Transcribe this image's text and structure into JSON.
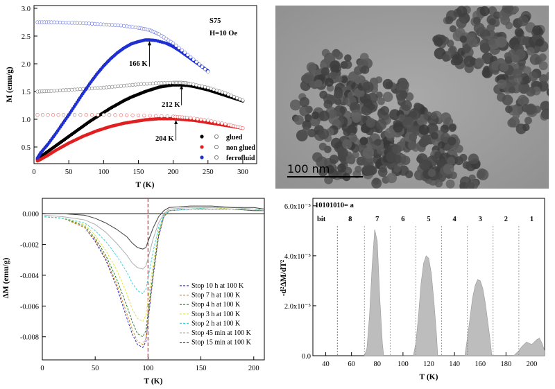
{
  "panel_a": {
    "sample": "S75",
    "field": "H=10 Oe",
    "xlabel": "T (K)",
    "ylabel": "M (emu/g)",
    "annotations": [
      "166 K",
      "212 K",
      "204 K"
    ],
    "legend": [
      "glued",
      "non glued",
      "ferrofluid"
    ],
    "colors": {
      "glued": "#000000",
      "non_glued": "#e02020",
      "ferrofluid": "#1f2fd0"
    }
  },
  "panel_b": {
    "scale_label": "100 nm"
  },
  "panel_c": {
    "xlabel": "T (K)",
    "ylabel": "ΔM (emu/g)",
    "legend": [
      "Stop 10 h at 100 K",
      "Stop 7 h at 100 K",
      "Stop 4 h at 100 K",
      "Stop 3 h at 100 K",
      "Stop 2 h at 100 K",
      "Stop 45 min at 100 K",
      "Stop 15 min at 100 K"
    ],
    "colors": [
      "#2a2acc",
      "#e0881a",
      "#2a7a2a",
      "#e0e04a",
      "#40d0e0",
      "#b0b0b0",
      "#404040"
    ]
  },
  "panel_d": {
    "header": "10101010= a",
    "bit_label": "bit",
    "bits": [
      "8",
      "7",
      "6",
      "5",
      "4",
      "3",
      "2",
      "1"
    ],
    "xlabel": "T (K)",
    "ylabel": "-d²ΔM/dT²"
  },
  "chart_data": [
    {
      "type": "scatter",
      "xlabel": "T (K)",
      "ylabel": "M (emu/g)",
      "xlim": [
        0,
        320
      ],
      "ylim": [
        0.2,
        3.05
      ],
      "xticks": [
        0,
        50,
        100,
        150,
        200,
        250,
        300
      ],
      "yticks": [
        0.5,
        1.0,
        1.5,
        2.0,
        2.5,
        3.0
      ],
      "series": [
        {
          "name": "glued",
          "mode": "ZFC",
          "x": [
            5,
            10,
            20,
            30,
            40,
            50,
            60,
            70,
            80,
            90,
            100,
            110,
            120,
            130,
            140,
            150,
            160,
            170,
            180,
            190,
            200,
            205,
            210,
            220,
            230,
            240,
            250,
            260,
            270,
            280,
            290,
            300
          ],
          "y": [
            0.28,
            0.33,
            0.42,
            0.51,
            0.6,
            0.69,
            0.78,
            0.87,
            0.96,
            1.04,
            1.12,
            1.2,
            1.27,
            1.34,
            1.4,
            1.45,
            1.5,
            1.54,
            1.58,
            1.6,
            1.62,
            1.62,
            1.62,
            1.61,
            1.59,
            1.56,
            1.53,
            1.49,
            1.45,
            1.41,
            1.37,
            1.33
          ]
        },
        {
          "name": "glued",
          "mode": "FC",
          "x": [
            5,
            25,
            50,
            75,
            100,
            125,
            150,
            175,
            200,
            212,
            225,
            250,
            275,
            300
          ],
          "y": [
            1.5,
            1.51,
            1.53,
            1.55,
            1.57,
            1.6,
            1.63,
            1.65,
            1.66,
            1.66,
            1.64,
            1.57,
            1.47,
            1.34
          ]
        },
        {
          "name": "non glued",
          "mode": "ZFC",
          "x": [
            5,
            10,
            20,
            30,
            40,
            50,
            60,
            70,
            80,
            90,
            100,
            110,
            120,
            130,
            140,
            150,
            160,
            170,
            180,
            190,
            200,
            210,
            220,
            230,
            240,
            250,
            260,
            270,
            280,
            290,
            300
          ],
          "y": [
            0.25,
            0.28,
            0.35,
            0.43,
            0.5,
            0.57,
            0.63,
            0.69,
            0.74,
            0.79,
            0.83,
            0.87,
            0.9,
            0.93,
            0.95,
            0.97,
            0.99,
            1.0,
            1.01,
            1.01,
            1.01,
            1.0,
            0.99,
            0.98,
            0.96,
            0.94,
            0.92,
            0.9,
            0.88,
            0.86,
            0.84
          ]
        },
        {
          "name": "non glued",
          "mode": "FC",
          "x": [
            5,
            50,
            100,
            150,
            200,
            220,
            250,
            280,
            300
          ],
          "y": [
            1.08,
            1.08,
            1.08,
            1.07,
            1.05,
            1.03,
            0.98,
            0.9,
            0.84
          ]
        },
        {
          "name": "ferrofluid",
          "mode": "ZFC",
          "x": [
            5,
            10,
            20,
            30,
            40,
            50,
            60,
            70,
            80,
            90,
            100,
            110,
            120,
            130,
            140,
            150,
            160,
            166,
            175,
            190,
            200,
            210,
            220,
            230,
            240,
            250
          ],
          "y": [
            0.3,
            0.4,
            0.55,
            0.72,
            0.9,
            1.08,
            1.27,
            1.46,
            1.64,
            1.81,
            1.96,
            2.09,
            2.2,
            2.29,
            2.36,
            2.4,
            2.43,
            2.43,
            2.42,
            2.37,
            2.31,
            2.23,
            2.14,
            2.05,
            1.96,
            1.87
          ]
        },
        {
          "name": "ferrofluid",
          "mode": "FC",
          "x": [
            5,
            25,
            50,
            75,
            100,
            125,
            150,
            166,
            180,
            200,
            225,
            250
          ],
          "y": [
            2.75,
            2.75,
            2.74,
            2.73,
            2.71,
            2.69,
            2.65,
            2.61,
            2.53,
            2.37,
            2.12,
            1.86
          ]
        }
      ]
    },
    {
      "type": "line",
      "xlabel": "T (K)",
      "ylabel": "ΔM (emu/g)",
      "xlim": [
        0,
        210
      ],
      "ylim": [
        -0.0095,
        0.001
      ],
      "xticks": [
        0,
        50,
        100,
        150,
        200
      ],
      "yticks": [
        0.0,
        -0.002,
        -0.004,
        -0.006,
        -0.008
      ],
      "vline": 100,
      "series": [
        {
          "name": "Stop 10 h at 100 K",
          "x": [
            2,
            20,
            40,
            50,
            60,
            70,
            80,
            85,
            90,
            95,
            98,
            100,
            105,
            110,
            115,
            120,
            140,
            160,
            180,
            200,
            210
          ],
          "y": [
            -0.0002,
            -0.0003,
            -0.0009,
            -0.0018,
            -0.003,
            -0.0047,
            -0.0068,
            -0.0078,
            -0.0085,
            -0.0087,
            -0.0083,
            -0.007,
            -0.004,
            -0.0015,
            -0.0002,
            0.0002,
            0.0003,
            0.0003,
            0.0003,
            0.0002,
            0.0002
          ]
        },
        {
          "name": "Stop 7 h at 100 K",
          "x": [
            2,
            20,
            40,
            50,
            60,
            70,
            80,
            85,
            90,
            95,
            98,
            100,
            105,
            110,
            115,
            120,
            140,
            160,
            180,
            200,
            210
          ],
          "y": [
            -0.0002,
            -0.0003,
            -0.0009,
            -0.0017,
            -0.0029,
            -0.0045,
            -0.0065,
            -0.0075,
            -0.0083,
            -0.0085,
            -0.0081,
            -0.0068,
            -0.0039,
            -0.0014,
            -0.0002,
            0.0002,
            0.0003,
            0.0003,
            0.0003,
            0.0002,
            0.0002
          ]
        },
        {
          "name": "Stop 4 h at 100 K",
          "x": [
            2,
            20,
            40,
            50,
            60,
            70,
            80,
            85,
            90,
            95,
            98,
            100,
            105,
            110,
            115,
            120,
            140,
            160,
            180,
            200,
            210
          ],
          "y": [
            -0.0002,
            -0.0003,
            -0.0008,
            -0.0016,
            -0.0027,
            -0.0042,
            -0.006,
            -0.007,
            -0.0078,
            -0.008,
            -0.0076,
            -0.0064,
            -0.0037,
            -0.0013,
            -0.0001,
            0.0002,
            0.0003,
            0.0004,
            0.0003,
            0.0002,
            0.0002
          ]
        },
        {
          "name": "Stop 3 h at 100 K",
          "x": [
            2,
            20,
            40,
            50,
            60,
            70,
            80,
            85,
            90,
            95,
            98,
            100,
            105,
            110,
            115,
            120,
            140,
            160,
            180,
            200,
            210
          ],
          "y": [
            -0.0002,
            -0.0003,
            -0.0007,
            -0.0014,
            -0.0024,
            -0.0036,
            -0.0052,
            -0.0062,
            -0.0068,
            -0.007,
            -0.0066,
            -0.0056,
            -0.0032,
            -0.0011,
            -0.0001,
            0.0002,
            0.0003,
            0.0004,
            0.0003,
            0.0003,
            0.0002
          ]
        },
        {
          "name": "Stop 2 h at 100 K",
          "x": [
            2,
            20,
            40,
            50,
            60,
            70,
            80,
            85,
            90,
            95,
            98,
            100,
            105,
            110,
            115,
            120,
            140,
            160,
            180,
            200,
            210
          ],
          "y": [
            -0.0002,
            -0.0003,
            -0.0006,
            -0.0011,
            -0.0018,
            -0.0027,
            -0.0038,
            -0.0045,
            -0.005,
            -0.0052,
            -0.0049,
            -0.0042,
            -0.0024,
            -0.0009,
            -0.0001,
            0.0002,
            0.0003,
            0.0004,
            0.0004,
            0.0003,
            0.0002
          ]
        },
        {
          "name": "Stop 45 min at 100 K",
          "x": [
            2,
            20,
            40,
            50,
            60,
            70,
            80,
            85,
            90,
            95,
            98,
            100,
            105,
            110,
            115,
            120,
            140,
            160,
            180,
            200,
            210
          ],
          "y": [
            -0.0001,
            -0.0002,
            -0.0004,
            -0.0007,
            -0.0012,
            -0.0019,
            -0.0027,
            -0.0032,
            -0.0035,
            -0.0036,
            -0.0034,
            -0.0029,
            -0.0016,
            -0.0006,
            0.0,
            0.0003,
            0.0004,
            0.0004,
            0.0004,
            0.0003,
            0.0003
          ]
        },
        {
          "name": "Stop 15 min at 100 K",
          "x": [
            2,
            20,
            40,
            50,
            60,
            70,
            80,
            85,
            90,
            95,
            98,
            100,
            105,
            110,
            115,
            120,
            140,
            160,
            180,
            200,
            210
          ],
          "y": [
            0.0,
            0.0,
            -0.0001,
            -0.0003,
            -0.0006,
            -0.001,
            -0.0015,
            -0.0019,
            -0.0022,
            -0.0023,
            -0.0022,
            -0.0018,
            -0.0009,
            -0.0002,
            0.0002,
            0.0004,
            0.0005,
            0.0005,
            0.0004,
            0.0004,
            0.0003
          ]
        }
      ]
    },
    {
      "type": "area",
      "xlabel": "T (K)",
      "ylabel": "-d²ΔM/dT²",
      "xlim": [
        30,
        210
      ],
      "ylim": [
        0,
        6.3e-05
      ],
      "xticks": [
        40,
        60,
        80,
        100,
        120,
        140,
        160,
        180,
        200
      ],
      "yticks": [
        0.0,
        2e-05,
        4e-05,
        6e-05
      ],
      "ytick_labels": [
        "0.0",
        "2.0x10⁻⁵",
        "4.0x10⁻⁵",
        "6.0x10⁻⁵"
      ],
      "bit_boundaries": [
        49,
        70,
        90,
        110,
        130,
        150,
        170,
        190
      ],
      "x": [
        70,
        72,
        74,
        76,
        78,
        80,
        82,
        84,
        85,
        108,
        110,
        112,
        114,
        116,
        118,
        120,
        122,
        124,
        126,
        127,
        148,
        150,
        152,
        154,
        156,
        158,
        160,
        162,
        164,
        166,
        168,
        169,
        186,
        188,
        190,
        192,
        194,
        196,
        198,
        200,
        202,
        204,
        206,
        208,
        210
      ],
      "y": [
        0,
        3e-06,
        1.6e-05,
        3.6e-05,
        5.05e-05,
        4.6e-05,
        2.3e-05,
        5e-06,
        0,
        0,
        5e-06,
        1.6e-05,
        2.9e-05,
        3.7e-05,
        4e-05,
        3.9e-05,
        3.3e-05,
        2.2e-05,
        9e-06,
        0,
        0,
        7e-06,
        1.5e-05,
        2.3e-05,
        2.8e-05,
        3.05e-05,
        3e-05,
        2.7e-05,
        2.1e-05,
        1.3e-05,
        5e-06,
        0,
        0,
        1e-06,
        2e-06,
        3.5e-06,
        4.5e-06,
        5.5e-06,
        5e-06,
        4.5e-06,
        5.5e-06,
        6.5e-06,
        7e-06,
        5e-06,
        2e-06
      ]
    }
  ]
}
